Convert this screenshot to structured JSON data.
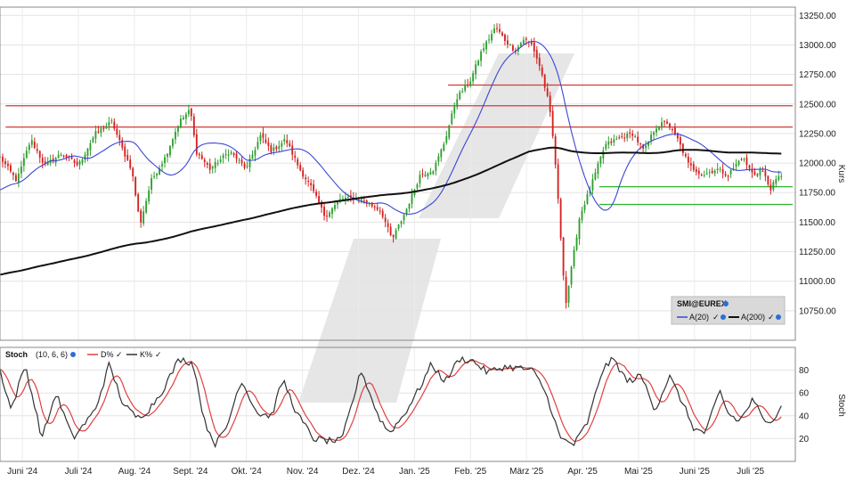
{
  "colors": {
    "up": "#2e9e2e",
    "down": "#d42020",
    "ma20": "#3a46d6",
    "ma200": "#111111",
    "resistance": "#d33a3a",
    "support": "#2cb32c",
    "stoch_d": "#e04040",
    "stoch_k": "#333333",
    "check": "#2a6fd6"
  },
  "chart_data": [
    {
      "type": "candlestick",
      "ylabel": "Kurs",
      "ylim": [
        10500,
        13320
      ],
      "yticks": [
        "13250.00",
        "13000.00",
        "12750.00",
        "12500.00",
        "12250.00",
        "12000.00",
        "11750.00",
        "11500.00",
        "11250.00",
        "11000.00",
        "10750.00"
      ],
      "ytick_values": [
        13250,
        13000,
        12750,
        12500,
        12250,
        12000,
        11750,
        11500,
        11250,
        11000,
        10750
      ],
      "x_categories": [
        "Juni '24",
        "Juli '24",
        "Aug. '24",
        "Sept. '24",
        "Okt. '24",
        "Nov. '24",
        "Dez. '24",
        "Jan. '25",
        "Feb. '25",
        "März '25",
        "Apr. '25",
        "Mai '25",
        "Juni '25",
        "Juli '25"
      ],
      "x_month_index": [
        0,
        1,
        2,
        3,
        4,
        5,
        6,
        7,
        8,
        9,
        10,
        11,
        12,
        13
      ],
      "x_range": [
        0.0,
        14.2
      ],
      "legend": {
        "title": "SMI@EUREX",
        "items": [
          {
            "name": "A(20)",
            "color_key": "ma20"
          },
          {
            "name": "A(200)",
            "color_key": "ma200"
          }
        ],
        "placement": "lower-right"
      },
      "horizontal_lines": [
        {
          "value": 12660,
          "color_key": "resistance",
          "start_month": 8.0
        },
        {
          "value": 12485,
          "color_key": "resistance",
          "start_month": 0.1
        },
        {
          "value": 12305,
          "color_key": "resistance",
          "start_month": 0.1
        },
        {
          "value": 11800,
          "color_key": "support",
          "start_month": 10.7
        },
        {
          "value": 11650,
          "color_key": "support",
          "start_month": 10.7
        }
      ],
      "close_anchors": [
        [
          0.0,
          12050
        ],
        [
          0.3,
          11850
        ],
        [
          0.55,
          12200
        ],
        [
          0.8,
          11980
        ],
        [
          1.1,
          12080
        ],
        [
          1.4,
          11980
        ],
        [
          1.7,
          12250
        ],
        [
          2.0,
          12350
        ],
        [
          2.2,
          12100
        ],
        [
          2.35,
          11950
        ],
        [
          2.5,
          11480
        ],
        [
          2.7,
          11850
        ],
        [
          2.95,
          12050
        ],
        [
          3.2,
          12350
        ],
        [
          3.4,
          12450
        ],
        [
          3.5,
          12100
        ],
        [
          3.75,
          11950
        ],
        [
          4.1,
          12100
        ],
        [
          4.4,
          11950
        ],
        [
          4.65,
          12230
        ],
        [
          4.85,
          12100
        ],
        [
          5.1,
          12200
        ],
        [
          5.35,
          11950
        ],
        [
          5.55,
          11800
        ],
        [
          5.8,
          11550
        ],
        [
          6.1,
          11700
        ],
        [
          6.4,
          11700
        ],
        [
          6.8,
          11600
        ],
        [
          7.0,
          11350
        ],
        [
          7.25,
          11600
        ],
        [
          7.5,
          11900
        ],
        [
          7.75,
          11950
        ],
        [
          7.95,
          12200
        ],
        [
          8.15,
          12550
        ],
        [
          8.4,
          12700
        ],
        [
          8.6,
          12950
        ],
        [
          8.85,
          13150
        ],
        [
          9.0,
          13050
        ],
        [
          9.2,
          12950
        ],
        [
          9.35,
          13050
        ],
        [
          9.5,
          13000
        ],
        [
          9.65,
          12800
        ],
        [
          9.8,
          12500
        ],
        [
          9.9,
          12100
        ],
        [
          10.0,
          11450
        ],
        [
          10.1,
          10800
        ],
        [
          10.2,
          11100
        ],
        [
          10.35,
          11550
        ],
        [
          10.55,
          11800
        ],
        [
          10.8,
          12150
        ],
        [
          11.0,
          12200
        ],
        [
          11.3,
          12250
        ],
        [
          11.5,
          12100
        ],
        [
          11.7,
          12300
        ],
        [
          11.9,
          12350
        ],
        [
          12.1,
          12200
        ],
        [
          12.3,
          11980
        ],
        [
          12.55,
          11900
        ],
        [
          12.8,
          11950
        ],
        [
          13.0,
          11900
        ],
        [
          13.25,
          12050
        ],
        [
          13.45,
          11900
        ],
        [
          13.6,
          11950
        ],
        [
          13.75,
          11780
        ],
        [
          13.85,
          11850
        ],
        [
          13.95,
          11900
        ]
      ],
      "stoch_anchors": [
        [
          0.0,
          80
        ],
        [
          0.2,
          45
        ],
        [
          0.45,
          85
        ],
        [
          0.75,
          20
        ],
        [
          1.0,
          60
        ],
        [
          1.3,
          20
        ],
        [
          1.7,
          45
        ],
        [
          1.95,
          85
        ],
        [
          2.2,
          50
        ],
        [
          2.45,
          38
        ],
        [
          2.65,
          45
        ],
        [
          2.9,
          62
        ],
        [
          3.2,
          90
        ],
        [
          3.45,
          86
        ],
        [
          3.65,
          35
        ],
        [
          3.85,
          15
        ],
        [
          4.05,
          30
        ],
        [
          4.3,
          72
        ],
        [
          4.6,
          42
        ],
        [
          4.85,
          40
        ],
        [
          5.05,
          72
        ],
        [
          5.3,
          42
        ],
        [
          5.6,
          20
        ],
        [
          5.85,
          18
        ],
        [
          6.1,
          18
        ],
        [
          6.45,
          80
        ],
        [
          6.75,
          40
        ],
        [
          6.95,
          25
        ],
        [
          7.2,
          40
        ],
        [
          7.5,
          65
        ],
        [
          7.7,
          85
        ],
        [
          7.95,
          70
        ],
        [
          8.2,
          90
        ],
        [
          8.45,
          88
        ],
        [
          8.7,
          78
        ],
        [
          9.0,
          83
        ],
        [
          9.25,
          82
        ],
        [
          9.5,
          80
        ],
        [
          9.7,
          65
        ],
        [
          9.85,
          45
        ],
        [
          10.0,
          20
        ],
        [
          10.25,
          15
        ],
        [
          10.5,
          35
        ],
        [
          10.75,
          80
        ],
        [
          10.95,
          90
        ],
        [
          11.2,
          70
        ],
        [
          11.45,
          75
        ],
        [
          11.7,
          45
        ],
        [
          11.95,
          75
        ],
        [
          12.15,
          55
        ],
        [
          12.4,
          28
        ],
        [
          12.6,
          25
        ],
        [
          12.85,
          62
        ],
        [
          13.0,
          42
        ],
        [
          13.2,
          35
        ],
        [
          13.45,
          55
        ],
        [
          13.65,
          33
        ],
        [
          13.85,
          40
        ],
        [
          14.0,
          55
        ]
      ]
    },
    {
      "type": "line",
      "title": "Stoch",
      "params": "(10, 6, 6)",
      "ylabel": "Stoch",
      "ylim": [
        0,
        100
      ],
      "yticks": [
        "80",
        "60",
        "40",
        "20"
      ],
      "ytick_values": [
        80,
        60,
        40,
        20
      ],
      "series": [
        {
          "name": "D%",
          "color_key": "stoch_d"
        },
        {
          "name": "K%",
          "color_key": "stoch_k"
        }
      ]
    }
  ]
}
